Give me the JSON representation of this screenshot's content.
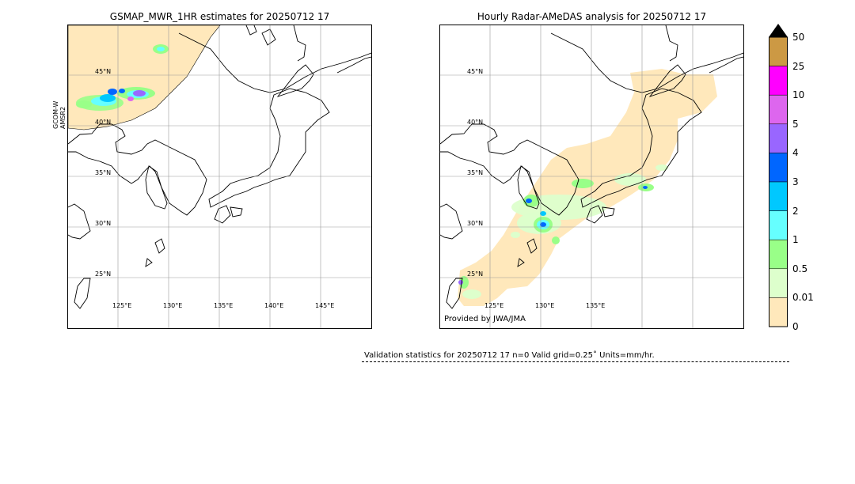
{
  "left_panel": {
    "title": "GSMAP_MWR_1HR estimates for 20250712 17",
    "sensor_label": "GCOM-W\nAMSR2",
    "sensor_line1": "GCOM-W",
    "sensor_line2": "AMSR2",
    "lat_labels": [
      "45°N",
      "40°N",
      "35°N",
      "30°N",
      "25°N"
    ],
    "lon_labels": [
      "125°E",
      "130°E",
      "135°E",
      "140°E",
      "145°E"
    ]
  },
  "right_panel": {
    "title": "Hourly Radar-AMeDAS analysis for 20250712 17",
    "lat_labels": [
      "45°N",
      "40°N",
      "35°N",
      "30°N",
      "25°N"
    ],
    "lon_labels": [
      "125°E",
      "130°E",
      "135°E"
    ],
    "credit": "Provided by JWA/JMA"
  },
  "colorbar": {
    "labels": [
      "50",
      "25",
      "10",
      "5",
      "4",
      "3",
      "2",
      "1",
      "0.5",
      "0.01",
      "0"
    ],
    "colors": [
      "#cc9944",
      "#ff00ff",
      "#dd66ee",
      "#9966ff",
      "#0066ff",
      "#00c8ff",
      "#66ffff",
      "#99ff88",
      "#ddffcc",
      "#ffe8bb"
    ],
    "over_color": "#000000"
  },
  "stats": {
    "text": "Validation statistics for 20250712 17  n=0 Valid  grid=0.25˚ Units=mm/hr."
  },
  "map": {
    "grid_lat": [
      45,
      40,
      35,
      30,
      25
    ],
    "grid_lon": [
      125,
      130,
      135,
      140,
      145
    ],
    "extent_lon": [
      120,
      150
    ],
    "extent_lat": [
      20,
      50
    ]
  }
}
